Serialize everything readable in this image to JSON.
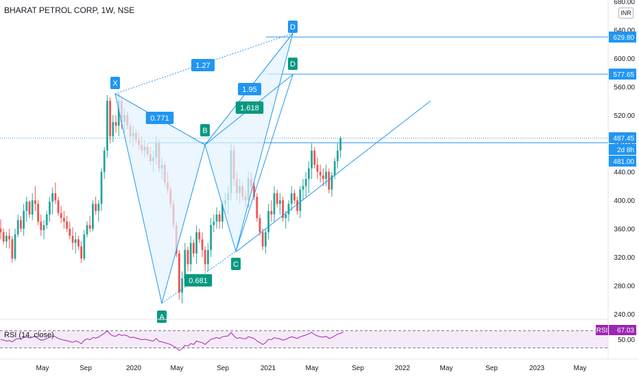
{
  "header": {
    "title": "BHARAT PETROL CORP, 1W, NSE",
    "currency": "INR"
  },
  "rsi": {
    "title": "RSI (14, close)",
    "badge": "RSI",
    "value": "67.03",
    "ticks": [
      "50.00"
    ]
  },
  "colors": {
    "up": "#26a69a",
    "down": "#ef5350",
    "pattern_line": "#2196f3",
    "pattern_fill": "#e3f2fd",
    "rsi_line": "#9c27b0",
    "label_blue": "#2196f3",
    "label_teal": "#089981"
  },
  "chart_data": {
    "type": "candlestick",
    "y_axis_ticks": [
      "680.00",
      "640.00",
      "600.00",
      "560.00",
      "520.00",
      "480.00",
      "440.00",
      "400.00",
      "360.00",
      "320.00",
      "280.00",
      "240.00"
    ],
    "ylim": [
      240,
      680
    ],
    "x_axis_ticks": [
      "May",
      "Sep",
      "2020",
      "May",
      "Sep",
      "2021",
      "May",
      "Sep",
      "2022",
      "May",
      "Sep",
      "2023",
      "May"
    ],
    "price_labels": {
      "target_1": "629.80",
      "target_2": "577.65",
      "last_price": "487.45",
      "countdown": "2d 8h",
      "support": "481.00"
    },
    "pattern_points": [
      {
        "label": "X",
        "price": 550
      },
      {
        "label": "A",
        "price": 255
      },
      {
        "label": "B",
        "price": 478
      },
      {
        "label": "C",
        "price": 328
      },
      {
        "label": "D",
        "price": 635
      },
      {
        "label": "D",
        "price": 577
      }
    ],
    "ratios": [
      "1.27",
      "0.771",
      "1.95",
      "1.618",
      "0.681"
    ],
    "candles": [
      [
        360,
        345,
        373,
        355
      ],
      [
        355,
        338,
        360,
        342
      ],
      [
        342,
        333,
        356,
        350
      ],
      [
        350,
        332,
        360,
        345
      ],
      [
        345,
        312,
        350,
        318
      ],
      [
        318,
        315,
        360,
        352
      ],
      [
        352,
        348,
        380,
        372
      ],
      [
        372,
        355,
        378,
        360
      ],
      [
        360,
        350,
        395,
        385
      ],
      [
        385,
        370,
        405,
        398
      ],
      [
        398,
        375,
        400,
        380
      ],
      [
        380,
        372,
        410,
        400
      ],
      [
        400,
        385,
        420,
        395
      ],
      [
        395,
        365,
        400,
        370
      ],
      [
        370,
        350,
        380,
        358
      ],
      [
        358,
        345,
        372,
        365
      ],
      [
        365,
        360,
        385,
        380
      ],
      [
        380,
        370,
        405,
        398
      ],
      [
        398,
        380,
        418,
        410
      ],
      [
        410,
        395,
        425,
        400
      ],
      [
        400,
        378,
        405,
        382
      ],
      [
        382,
        368,
        392,
        375
      ],
      [
        375,
        360,
        385,
        370
      ],
      [
        370,
        355,
        378,
        360
      ],
      [
        360,
        345,
        370,
        350
      ],
      [
        350,
        330,
        362,
        340
      ],
      [
        340,
        325,
        355,
        345
      ],
      [
        345,
        330,
        350,
        335
      ],
      [
        335,
        312,
        342,
        318
      ],
      [
        318,
        315,
        358,
        352
      ],
      [
        352,
        348,
        370,
        365
      ],
      [
        365,
        355,
        378,
        360
      ],
      [
        360,
        356,
        400,
        395
      ],
      [
        395,
        380,
        405,
        385
      ],
      [
        385,
        370,
        400,
        395
      ],
      [
        395,
        385,
        445,
        440
      ],
      [
        440,
        430,
        475,
        470
      ],
      [
        470,
        460,
        548,
        540
      ],
      [
        540,
        480,
        545,
        490
      ],
      [
        490,
        482,
        520,
        510
      ],
      [
        510,
        495,
        520,
        505
      ],
      [
        505,
        490,
        550,
        540
      ],
      [
        540,
        500,
        545,
        510
      ],
      [
        510,
        495,
        530,
        520
      ],
      [
        520,
        500,
        525,
        505
      ],
      [
        505,
        480,
        510,
        490
      ],
      [
        490,
        475,
        505,
        495
      ],
      [
        495,
        480,
        500,
        485
      ],
      [
        485,
        470,
        495,
        478
      ],
      [
        478,
        465,
        490,
        470
      ],
      [
        470,
        460,
        485,
        475
      ],
      [
        475,
        460,
        480,
        465
      ],
      [
        465,
        450,
        475,
        455
      ],
      [
        455,
        440,
        470,
        460
      ],
      [
        460,
        450,
        490,
        480
      ],
      [
        480,
        440,
        485,
        445
      ],
      [
        445,
        430,
        460,
        450
      ],
      [
        450,
        420,
        455,
        425
      ],
      [
        425,
        410,
        440,
        415
      ],
      [
        415,
        390,
        420,
        395
      ],
      [
        395,
        360,
        400,
        365
      ],
      [
        365,
        320,
        370,
        325
      ],
      [
        325,
        260,
        330,
        270
      ],
      [
        270,
        255,
        300,
        290
      ],
      [
        290,
        280,
        340,
        330
      ],
      [
        330,
        300,
        335,
        310
      ],
      [
        310,
        300,
        350,
        340
      ],
      [
        340,
        320,
        345,
        325
      ],
      [
        325,
        310,
        365,
        355
      ],
      [
        355,
        340,
        360,
        345
      ],
      [
        345,
        320,
        355,
        330
      ],
      [
        330,
        300,
        335,
        310
      ],
      [
        310,
        300,
        340,
        330
      ],
      [
        330,
        320,
        375,
        365
      ],
      [
        365,
        355,
        380,
        370
      ],
      [
        370,
        360,
        390,
        380
      ],
      [
        380,
        360,
        385,
        370
      ],
      [
        370,
        360,
        400,
        395
      ],
      [
        395,
        380,
        410,
        400
      ],
      [
        400,
        380,
        420,
        410
      ],
      [
        410,
        400,
        480,
        470
      ],
      [
        470,
        420,
        478,
        430
      ],
      [
        430,
        400,
        440,
        410
      ],
      [
        410,
        395,
        430,
        420
      ],
      [
        420,
        400,
        425,
        405
      ],
      [
        405,
        390,
        415,
        400
      ],
      [
        400,
        390,
        440,
        430
      ],
      [
        430,
        410,
        440,
        420
      ],
      [
        420,
        400,
        425,
        405
      ],
      [
        405,
        370,
        410,
        375
      ],
      [
        375,
        350,
        380,
        355
      ],
      [
        355,
        330,
        360,
        335
      ],
      [
        335,
        325,
        360,
        355
      ],
      [
        355,
        345,
        395,
        385
      ],
      [
        385,
        370,
        400,
        380
      ],
      [
        380,
        370,
        420,
        410
      ],
      [
        410,
        390,
        415,
        395
      ],
      [
        395,
        380,
        410,
        400
      ],
      [
        400,
        370,
        405,
        375
      ],
      [
        375,
        360,
        385,
        380
      ],
      [
        380,
        370,
        400,
        395
      ],
      [
        395,
        385,
        420,
        410
      ],
      [
        410,
        395,
        415,
        400
      ],
      [
        400,
        380,
        405,
        385
      ],
      [
        385,
        375,
        420,
        415
      ],
      [
        415,
        400,
        430,
        420
      ],
      [
        420,
        405,
        440,
        430
      ],
      [
        430,
        410,
        455,
        445
      ],
      [
        445,
        430,
        480,
        470
      ],
      [
        470,
        445,
        475,
        450
      ],
      [
        450,
        430,
        460,
        440
      ],
      [
        440,
        425,
        450,
        435
      ],
      [
        435,
        420,
        445,
        430
      ],
      [
        430,
        420,
        450,
        440
      ],
      [
        440,
        410,
        445,
        415
      ],
      [
        415,
        405,
        440,
        435
      ],
      [
        435,
        430,
        460,
        455
      ],
      [
        455,
        445,
        480,
        470
      ],
      [
        470,
        460,
        490,
        487
      ]
    ],
    "rsi_values": [
      50,
      48,
      46,
      47,
      44,
      49,
      52,
      50,
      54,
      56,
      53,
      55,
      57,
      52,
      48,
      49,
      52,
      55,
      58,
      56,
      52,
      50,
      48,
      47,
      45,
      43,
      46,
      44,
      40,
      48,
      51,
      49,
      54,
      53,
      55,
      60,
      64,
      70,
      62,
      58,
      57,
      62,
      59,
      60,
      58,
      54,
      55,
      53,
      51,
      49,
      50,
      49,
      47,
      46,
      52,
      45,
      44,
      42,
      40,
      38,
      34,
      30,
      24,
      28,
      36,
      34,
      40,
      38,
      46,
      44,
      42,
      38,
      44,
      50,
      52,
      54,
      52,
      56,
      57,
      58,
      66,
      58,
      52,
      54,
      52,
      51,
      56,
      54,
      52,
      46,
      42,
      38,
      42,
      50,
      49,
      54,
      52,
      51,
      48,
      50,
      53,
      56,
      54,
      52,
      56,
      58,
      60,
      63,
      66,
      61,
      58,
      56,
      55,
      57,
      52,
      54,
      58,
      62,
      64,
      67
    ]
  }
}
